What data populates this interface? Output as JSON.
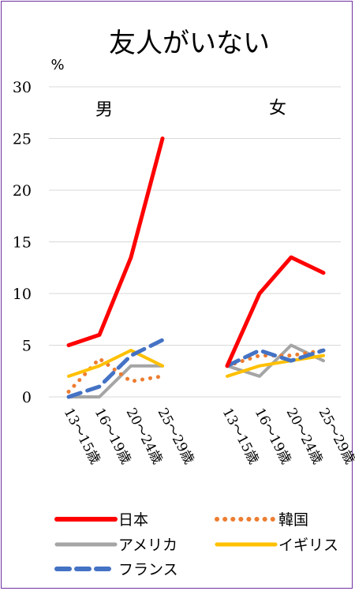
{
  "chart_data": {
    "type": "line",
    "title": "友人がいない",
    "ylabel": "%",
    "ylim": [
      0,
      30
    ],
    "yticks": [
      0,
      5,
      10,
      15,
      20,
      25,
      30
    ],
    "grid": true,
    "legend_position": "bottom",
    "groups": [
      {
        "label": "男",
        "categories": [
          "13〜15歳",
          "16〜19歳",
          "20〜24歳",
          "25〜29歳"
        ],
        "series": [
          {
            "name": "日本",
            "values": [
              5,
              6,
              13.5,
              25
            ]
          },
          {
            "name": "韓国",
            "values": [
              0.5,
              3.7,
              1.5,
              2
            ]
          },
          {
            "name": "アメリカ",
            "values": [
              0,
              0,
              3,
              3
            ]
          },
          {
            "name": "イギリス",
            "values": [
              2,
              3,
              4.5,
              3
            ]
          },
          {
            "name": "フランス",
            "values": [
              0,
              1,
              4,
              5.5
            ]
          }
        ]
      },
      {
        "label": "女",
        "categories": [
          "13〜15歳",
          "16〜19歳",
          "20〜24歳",
          "25〜29歳"
        ],
        "series": [
          {
            "name": "日本",
            "values": [
              3,
              10,
              13.5,
              12
            ]
          },
          {
            "name": "韓国",
            "values": [
              3,
              4,
              4,
              4.5
            ]
          },
          {
            "name": "アメリカ",
            "values": [
              3,
              2,
              5,
              3.5
            ]
          },
          {
            "name": "イギリス",
            "values": [
              2,
              3,
              3.5,
              4
            ]
          },
          {
            "name": "フランス",
            "values": [
              3,
              4.5,
              3.5,
              4.5
            ]
          }
        ]
      }
    ]
  },
  "colors": {
    "日本": "#ff0000",
    "韓国": "#ed7d31",
    "アメリカ": "#a5a5a5",
    "イギリス": "#ffc000",
    "フランス": "#4472c4",
    "grid": "#d9d9d9",
    "frame": "#7030a0"
  }
}
